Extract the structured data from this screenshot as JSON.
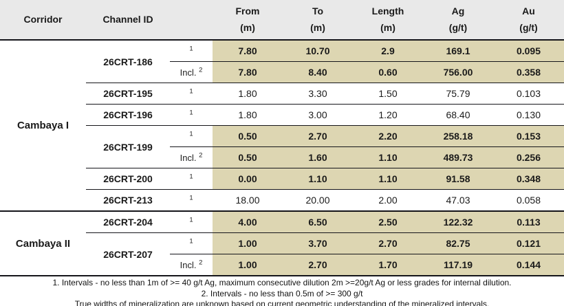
{
  "table": {
    "columns": [
      {
        "label": "Corridor",
        "unit": ""
      },
      {
        "label": "Channel ID",
        "unit": ""
      },
      {
        "label": "",
        "unit": ""
      },
      {
        "label": "From",
        "unit": "(m)"
      },
      {
        "label": "To",
        "unit": "(m)"
      },
      {
        "label": "Length",
        "unit": "(m)"
      },
      {
        "label": "Ag",
        "unit": "(g/t)"
      },
      {
        "label": "Au",
        "unit": "(g/t)"
      }
    ],
    "incl_label": "Incl.",
    "rows": [
      {
        "corridor": "Cambaya I",
        "corridor_span": 8,
        "channel": "26CRT-186",
        "channel_span": 2,
        "note": "1",
        "incl": false,
        "from": "7.80",
        "to": "10.70",
        "length": "2.9",
        "ag": "169.1",
        "au": "0.095",
        "highlight": true
      },
      {
        "note": "2",
        "incl": true,
        "from": "7.80",
        "to": "8.40",
        "length": "0.60",
        "ag": "756.00",
        "au": "0.358",
        "highlight": true
      },
      {
        "channel": "26CRT-195",
        "channel_span": 1,
        "note": "1",
        "incl": false,
        "from": "1.80",
        "to": "3.30",
        "length": "1.50",
        "ag": "75.79",
        "au": "0.103",
        "highlight": false
      },
      {
        "channel": "26CRT-196",
        "channel_span": 1,
        "note": "1",
        "incl": false,
        "from": "1.80",
        "to": "3.00",
        "length": "1.20",
        "ag": "68.40",
        "au": "0.130",
        "highlight": false
      },
      {
        "channel": "26CRT-199",
        "channel_span": 2,
        "note": "1",
        "incl": false,
        "from": "0.50",
        "to": "2.70",
        "length": "2.20",
        "ag": "258.18",
        "au": "0.153",
        "highlight": true
      },
      {
        "note": "2",
        "incl": true,
        "from": "0.50",
        "to": "1.60",
        "length": "1.10",
        "ag": "489.73",
        "au": "0.256",
        "highlight": true
      },
      {
        "channel": "26CRT-200",
        "channel_span": 1,
        "note": "1",
        "incl": false,
        "from": "0.00",
        "to": "1.10",
        "length": "1.10",
        "ag": "91.58",
        "au": "0.348",
        "highlight": true
      },
      {
        "channel": "26CRT-213",
        "channel_span": 1,
        "note": "1",
        "incl": false,
        "from": "18.00",
        "to": "20.00",
        "length": "2.00",
        "ag": "47.03",
        "au": "0.058",
        "highlight": false
      },
      {
        "corridor": "Cambaya II",
        "corridor_span": 3,
        "channel": "26CRT-204",
        "channel_span": 1,
        "note": "1",
        "incl": false,
        "from": "4.00",
        "to": "6.50",
        "length": "2.50",
        "ag": "122.32",
        "au": "0.113",
        "highlight": true
      },
      {
        "channel": "26CRT-207",
        "channel_span": 2,
        "note": "1",
        "incl": false,
        "from": "1.00",
        "to": "3.70",
        "length": "2.70",
        "ag": "82.75",
        "au": "0.121",
        "highlight": true
      },
      {
        "note": "2",
        "incl": true,
        "from": "1.00",
        "to": "2.70",
        "length": "1.70",
        "ag": "117.19",
        "au": "0.144",
        "highlight": true
      }
    ]
  },
  "footnotes": [
    "1. Intervals - no less than 1m of >= 40 g/t Ag, maximum consecutive dilution 2m >=20g/t Ag or less grades for internal dilution.",
    "2. Intervals - no less than 0.5m of >= 300 g/t",
    "True widths of mineralization are unknown based on current geometric understanding of the mineralized intervals."
  ],
  "colors": {
    "highlight_beige": "#ddd6b2",
    "header_gray": "#e9e9e9",
    "border_dark": "#141419"
  }
}
